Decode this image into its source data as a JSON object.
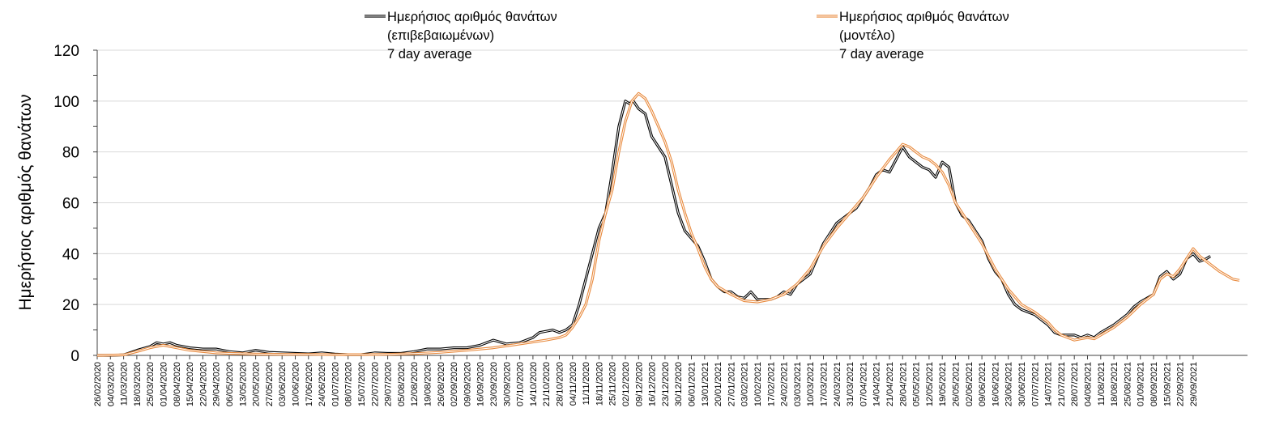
{
  "chart_data": {
    "type": "line",
    "title": "",
    "xlabel": "",
    "ylabel": "Ημερήσιος αριθμός θανάτων",
    "ylim": [
      0,
      120
    ],
    "yticks": [
      0,
      20,
      40,
      60,
      80,
      100,
      120
    ],
    "grid": true,
    "legend_position": "top",
    "x_tick_labels": [
      "26/02/2020",
      "04/03/2020",
      "11/03/2020",
      "18/03/2020",
      "25/03/2020",
      "01/04/2020",
      "08/04/2020",
      "15/04/2020",
      "22/04/2020",
      "29/04/2020",
      "06/05/2020",
      "13/05/2020",
      "20/05/2020",
      "27/05/2020",
      "03/06/2020",
      "10/06/2020",
      "17/06/2020",
      "24/06/2020",
      "01/07/2020",
      "08/07/2020",
      "15/07/2020",
      "22/07/2020",
      "29/07/2020",
      "05/08/2020",
      "12/08/2020",
      "19/08/2020",
      "26/08/2020",
      "02/09/2020",
      "09/09/2020",
      "16/09/2020",
      "23/09/2020",
      "30/09/2020",
      "07/10/2020",
      "14/10/2020",
      "21/10/2020",
      "28/10/2020",
      "04/11/2020",
      "11/11/2020",
      "18/11/2020",
      "25/11/2020",
      "02/12/2020",
      "09/12/2020",
      "16/12/2020",
      "23/12/2020",
      "30/12/2020",
      "06/01/2021",
      "13/01/2021",
      "20/01/2021",
      "27/01/2021",
      "03/02/2021",
      "10/02/2021",
      "17/02/2021",
      "24/02/2021",
      "03/03/2021",
      "10/03/2021",
      "17/03/2021",
      "24/03/2021",
      "31/03/2021",
      "07/04/2021",
      "14/04/2021",
      "21/04/2021",
      "28/04/2021",
      "05/05/2021",
      "12/05/2021",
      "19/05/2021",
      "26/05/2021",
      "02/06/2021",
      "09/06/2021",
      "16/06/2021",
      "23/06/2021",
      "30/06/2021",
      "07/07/2021",
      "14/07/2021",
      "21/07/2021",
      "28/07/2021",
      "04/08/2021",
      "11/08/2021",
      "18/08/2021",
      "25/08/2021",
      "01/09/2021",
      "08/09/2021",
      "15/09/2021",
      "22/09/2021",
      "29/09/2021"
    ],
    "series": [
      {
        "name": "Ημερήσιος αριθμός θανάτων (επιβεβαιωμένων) 7 day average",
        "legend_lines": [
          "Ημερήσιος αριθμός θανάτων",
          "(επιβεβαιωμένων)",
          "7 day average"
        ],
        "color": "#000000",
        "points": [
          [
            0,
            0
          ],
          [
            1,
            0
          ],
          [
            2,
            0.2
          ],
          [
            3,
            2
          ],
          [
            4,
            3.5
          ],
          [
            4.5,
            5
          ],
          [
            5,
            4.5
          ],
          [
            5.5,
            5
          ],
          [
            6,
            4
          ],
          [
            7,
            3
          ],
          [
            8,
            2.5
          ],
          [
            9,
            2.5
          ],
          [
            10,
            1.5
          ],
          [
            11,
            1
          ],
          [
            12,
            2
          ],
          [
            13,
            1.2
          ],
          [
            14,
            1
          ],
          [
            15,
            0.8
          ],
          [
            16,
            0.6
          ],
          [
            17,
            1
          ],
          [
            18,
            0.5
          ],
          [
            19,
            0.3
          ],
          [
            20,
            0.3
          ],
          [
            21,
            1
          ],
          [
            22,
            0.8
          ],
          [
            23,
            0.8
          ],
          [
            24,
            1.5
          ],
          [
            25,
            2.5
          ],
          [
            26,
            2.5
          ],
          [
            27,
            3
          ],
          [
            28,
            3
          ],
          [
            29,
            4
          ],
          [
            30,
            6
          ],
          [
            31,
            4.5
          ],
          [
            32,
            5
          ],
          [
            32.5,
            6
          ],
          [
            33,
            7
          ],
          [
            33.5,
            9
          ],
          [
            34,
            9.5
          ],
          [
            34.5,
            10
          ],
          [
            35,
            9
          ],
          [
            35.5,
            10
          ],
          [
            36,
            12
          ],
          [
            36.5,
            20
          ],
          [
            37,
            30
          ],
          [
            37.5,
            40
          ],
          [
            38,
            50
          ],
          [
            38.5,
            56
          ],
          [
            39,
            72
          ],
          [
            39.5,
            90
          ],
          [
            40,
            100
          ],
          [
            40.3,
            99
          ],
          [
            40.6,
            100
          ],
          [
            41,
            97
          ],
          [
            41.5,
            95
          ],
          [
            42,
            86
          ],
          [
            42.5,
            82
          ],
          [
            43,
            78
          ],
          [
            43.5,
            67
          ],
          [
            44,
            56
          ],
          [
            44.5,
            49
          ],
          [
            45,
            46
          ],
          [
            45.5,
            43
          ],
          [
            46,
            37
          ],
          [
            46.5,
            30
          ],
          [
            47,
            27
          ],
          [
            47.5,
            25
          ],
          [
            48,
            25
          ],
          [
            48.5,
            23
          ],
          [
            49,
            22.5
          ],
          [
            49.5,
            25
          ],
          [
            50,
            22
          ],
          [
            51,
            22
          ],
          [
            51.5,
            23
          ],
          [
            52,
            25
          ],
          [
            52.5,
            24
          ],
          [
            53,
            28
          ],
          [
            54,
            32
          ],
          [
            54.5,
            38
          ],
          [
            55,
            44
          ],
          [
            55.5,
            48
          ],
          [
            56,
            52
          ],
          [
            56.5,
            54
          ],
          [
            57,
            56
          ],
          [
            57.5,
            58
          ],
          [
            58,
            62
          ],
          [
            58.5,
            66
          ],
          [
            59,
            71
          ],
          [
            59.5,
            73
          ],
          [
            60,
            72
          ],
          [
            60.5,
            77
          ],
          [
            61,
            82
          ],
          [
            61.5,
            78
          ],
          [
            62,
            76
          ],
          [
            62.5,
            74
          ],
          [
            63,
            73
          ],
          [
            63.5,
            70
          ],
          [
            64,
            76
          ],
          [
            64.5,
            74
          ],
          [
            65,
            60
          ],
          [
            65.5,
            55
          ],
          [
            66,
            53
          ],
          [
            67,
            45
          ],
          [
            67.5,
            38
          ],
          [
            68,
            33
          ],
          [
            68.5,
            30
          ],
          [
            69,
            24
          ],
          [
            69.5,
            20
          ],
          [
            70,
            18
          ],
          [
            71,
            16
          ],
          [
            72,
            12
          ],
          [
            72.5,
            9
          ],
          [
            73,
            8
          ],
          [
            74,
            8
          ],
          [
            74.5,
            7
          ],
          [
            75,
            8
          ],
          [
            75.5,
            7
          ],
          [
            76,
            9
          ],
          [
            77,
            12
          ],
          [
            78,
            16
          ],
          [
            78.5,
            19
          ],
          [
            79,
            21
          ],
          [
            80,
            24
          ],
          [
            80.5,
            31
          ],
          [
            81,
            33
          ],
          [
            81.5,
            30
          ],
          [
            82,
            32
          ],
          [
            82.5,
            38
          ],
          [
            83,
            40
          ],
          [
            83.5,
            37
          ],
          [
            84,
            38
          ],
          [
            84.3,
            39
          ]
        ]
      },
      {
        "name": "Ημερήσιος αριθμός θανάτων (μοντέλο) 7 day average",
        "legend_lines": [
          "Ημερήσιος αριθμός θανάτων",
          "(μοντέλο)",
          "7 day average"
        ],
        "color": "#E8893C",
        "points": [
          [
            0,
            0
          ],
          [
            2,
            0.2
          ],
          [
            3,
            1.5
          ],
          [
            4,
            3
          ],
          [
            5,
            4
          ],
          [
            6,
            3
          ],
          [
            7,
            2
          ],
          [
            8,
            1.5
          ],
          [
            9,
            1
          ],
          [
            10,
            0.8
          ],
          [
            12,
            0.5
          ],
          [
            14,
            0.4
          ],
          [
            16,
            0.4
          ],
          [
            18,
            0.3
          ],
          [
            20,
            0.3
          ],
          [
            22,
            0.4
          ],
          [
            24,
            0.7
          ],
          [
            26,
            1.2
          ],
          [
            28,
            2
          ],
          [
            30,
            3
          ],
          [
            32,
            4.5
          ],
          [
            34,
            6
          ],
          [
            35,
            7
          ],
          [
            35.5,
            8
          ],
          [
            36,
            11
          ],
          [
            36.5,
            15
          ],
          [
            37,
            20
          ],
          [
            37.5,
            30
          ],
          [
            38,
            45
          ],
          [
            38.5,
            56
          ],
          [
            39,
            65
          ],
          [
            39.5,
            80
          ],
          [
            40,
            92
          ],
          [
            40.5,
            100
          ],
          [
            41,
            103
          ],
          [
            41.5,
            101
          ],
          [
            42,
            96
          ],
          [
            42.5,
            90
          ],
          [
            43,
            84
          ],
          [
            43.5,
            76
          ],
          [
            44,
            65
          ],
          [
            44.5,
            56
          ],
          [
            45,
            48
          ],
          [
            45.5,
            42
          ],
          [
            46,
            35
          ],
          [
            46.5,
            30
          ],
          [
            47,
            27
          ],
          [
            48,
            24
          ],
          [
            49,
            21.5
          ],
          [
            50,
            21
          ],
          [
            51,
            22
          ],
          [
            52,
            24
          ],
          [
            53,
            28
          ],
          [
            54,
            34
          ],
          [
            55,
            43
          ],
          [
            56,
            50
          ],
          [
            57,
            56
          ],
          [
            58,
            62
          ],
          [
            59,
            70
          ],
          [
            60,
            77
          ],
          [
            60.5,
            80
          ],
          [
            61,
            83
          ],
          [
            61.5,
            82
          ],
          [
            62,
            80
          ],
          [
            62.5,
            78
          ],
          [
            63,
            77
          ],
          [
            63.5,
            75
          ],
          [
            64,
            72
          ],
          [
            64.5,
            67
          ],
          [
            65,
            60
          ],
          [
            65.5,
            56
          ],
          [
            66,
            52
          ],
          [
            67,
            44
          ],
          [
            68,
            34
          ],
          [
            69,
            26
          ],
          [
            70,
            20
          ],
          [
            71,
            17
          ],
          [
            72,
            13
          ],
          [
            72.5,
            10
          ],
          [
            73,
            8
          ],
          [
            74,
            6
          ],
          [
            75,
            7
          ],
          [
            75.5,
            6.5
          ],
          [
            76,
            8
          ],
          [
            77,
            11
          ],
          [
            78,
            15
          ],
          [
            79,
            20
          ],
          [
            80,
            24
          ],
          [
            80.5,
            30
          ],
          [
            81,
            32
          ],
          [
            81.5,
            31
          ],
          [
            82,
            34
          ],
          [
            82.5,
            38
          ],
          [
            83,
            42
          ],
          [
            83.5,
            39
          ],
          [
            84,
            37
          ],
          [
            85,
            33
          ],
          [
            86,
            30
          ],
          [
            86.5,
            29.5
          ]
        ]
      }
    ]
  }
}
